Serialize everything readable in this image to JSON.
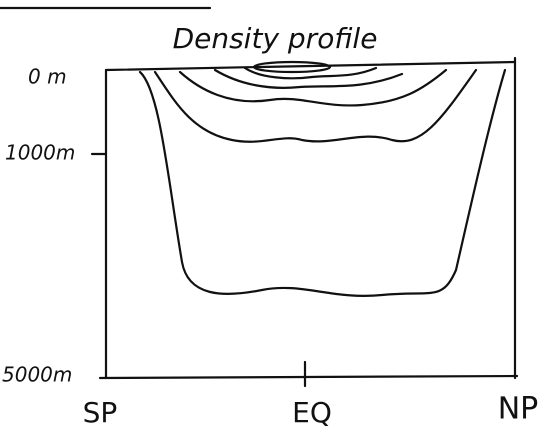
{
  "title": "Density profile",
  "depth_labels": [
    "0 m",
    "1000m",
    "5000m"
  ],
  "latitude_labels": [
    "SP",
    "EQ",
    "NP"
  ]
}
